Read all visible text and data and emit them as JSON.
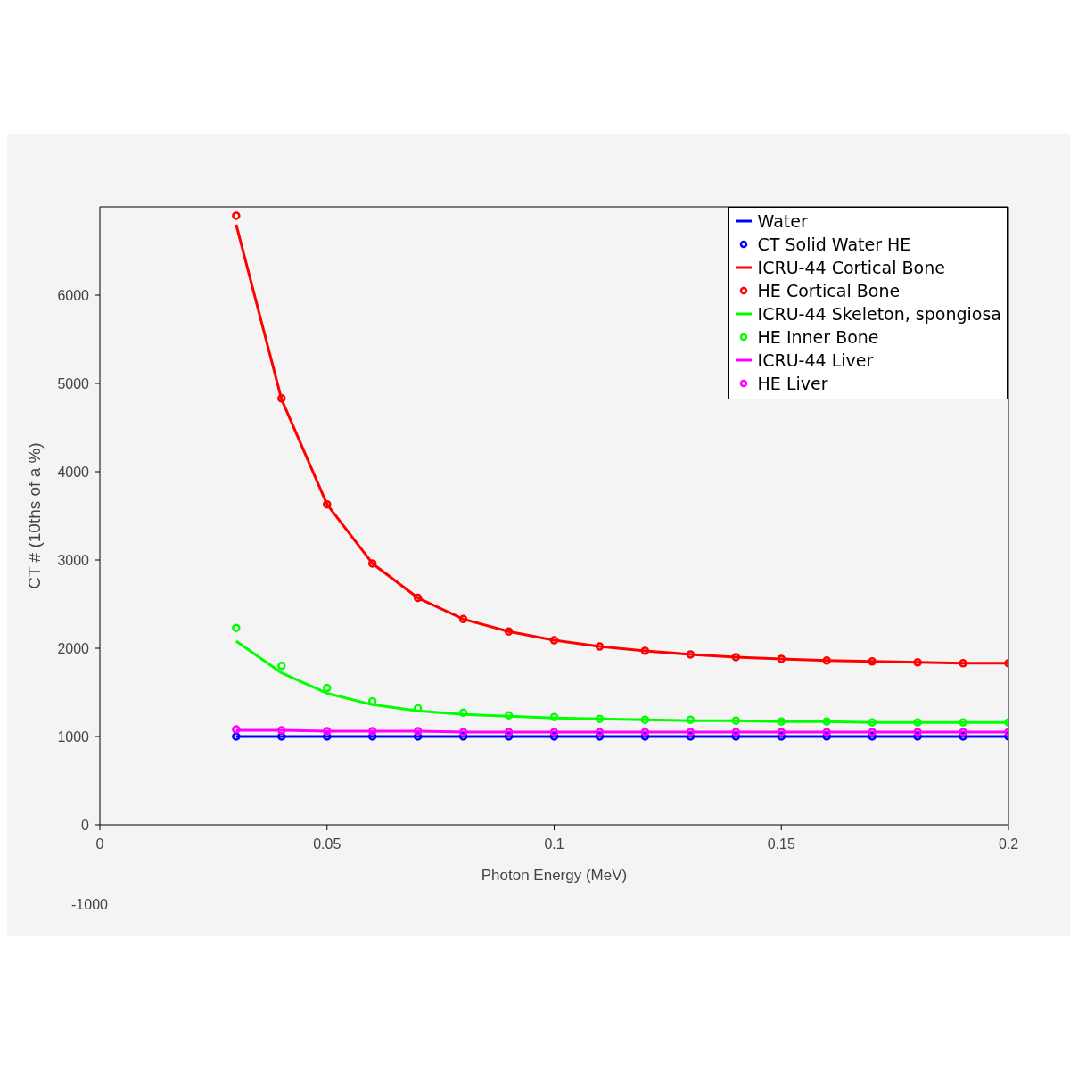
{
  "chart_data": {
    "type": "line",
    "xlabel": "Photon Energy (MeV)",
    "ylabel": "CT # (10ths of a %)",
    "x": [
      0.03,
      0.04,
      0.05,
      0.06,
      0.07,
      0.08,
      0.09,
      0.1,
      0.11,
      0.12,
      0.13,
      0.14,
      0.15,
      0.16,
      0.17,
      0.18,
      0.19,
      0.2
    ],
    "series": [
      {
        "name": "Water",
        "color": "#0000ff",
        "marker": "none",
        "values": [
          1000,
          1000,
          1000,
          1000,
          1000,
          1000,
          1000,
          1000,
          1000,
          1000,
          1000,
          1000,
          1000,
          1000,
          1000,
          1000,
          1000,
          1000
        ]
      },
      {
        "name": "CT Solid Water HE",
        "type": "scatter",
        "color": "#0000ff",
        "marker": "circle",
        "values": [
          1000,
          1000,
          1000,
          1000,
          1000,
          1000,
          1000,
          1000,
          1000,
          1000,
          1000,
          1000,
          1000,
          1000,
          1000,
          1000,
          1000,
          1000
        ]
      },
      {
        "name": "ICRU-44 Cortical Bone",
        "color": "#ff0000",
        "marker": "none",
        "values": [
          6800,
          4820,
          3630,
          2960,
          2570,
          2330,
          2190,
          2090,
          2020,
          1970,
          1930,
          1900,
          1880,
          1860,
          1850,
          1840,
          1830,
          1830
        ]
      },
      {
        "name": "HE Cortical Bone",
        "type": "scatter",
        "color": "#ff0000",
        "marker": "circle",
        "values": [
          6900,
          4830,
          3630,
          2960,
          2570,
          2330,
          2190,
          2090,
          2020,
          1970,
          1930,
          1900,
          1880,
          1860,
          1850,
          1840,
          1830,
          1830
        ]
      },
      {
        "name": "ICRU-44 Skeleton, spongiosa",
        "color": "#00ff00",
        "marker": "none",
        "values": [
          2080,
          1720,
          1490,
          1360,
          1290,
          1250,
          1230,
          1210,
          1200,
          1190,
          1180,
          1180,
          1170,
          1170,
          1160,
          1160,
          1160,
          1160
        ]
      },
      {
        "name": "HE Inner Bone",
        "type": "scatter",
        "color": "#00ff00",
        "marker": "circle",
        "values": [
          2230,
          1800,
          1550,
          1400,
          1320,
          1270,
          1240,
          1220,
          1200,
          1190,
          1190,
          1180,
          1170,
          1170,
          1160,
          1160,
          1160,
          1160
        ]
      },
      {
        "name": "ICRU-44 Liver",
        "color": "#ff00ff",
        "marker": "none",
        "values": [
          1070,
          1070,
          1060,
          1060,
          1060,
          1050,
          1050,
          1050,
          1050,
          1050,
          1050,
          1050,
          1050,
          1050,
          1050,
          1050,
          1050,
          1050
        ]
      },
      {
        "name": "HE Liver",
        "type": "scatter",
        "color": "#ff00ff",
        "marker": "circle",
        "values": [
          1080,
          1070,
          1060,
          1060,
          1060,
          1050,
          1050,
          1050,
          1050,
          1050,
          1050,
          1050,
          1050,
          1050,
          1050,
          1050,
          1050,
          1050
        ]
      }
    ],
    "xlim": [
      0,
      0.2
    ],
    "xticks": [
      0,
      0.05,
      0.1,
      0.15,
      0.2
    ],
    "ylim": [
      0,
      7000
    ],
    "yticks": [
      0,
      1000,
      2000,
      3000,
      4000,
      5000,
      6000
    ],
    "annotations": [
      "-1000"
    ],
    "legend": "top right"
  }
}
